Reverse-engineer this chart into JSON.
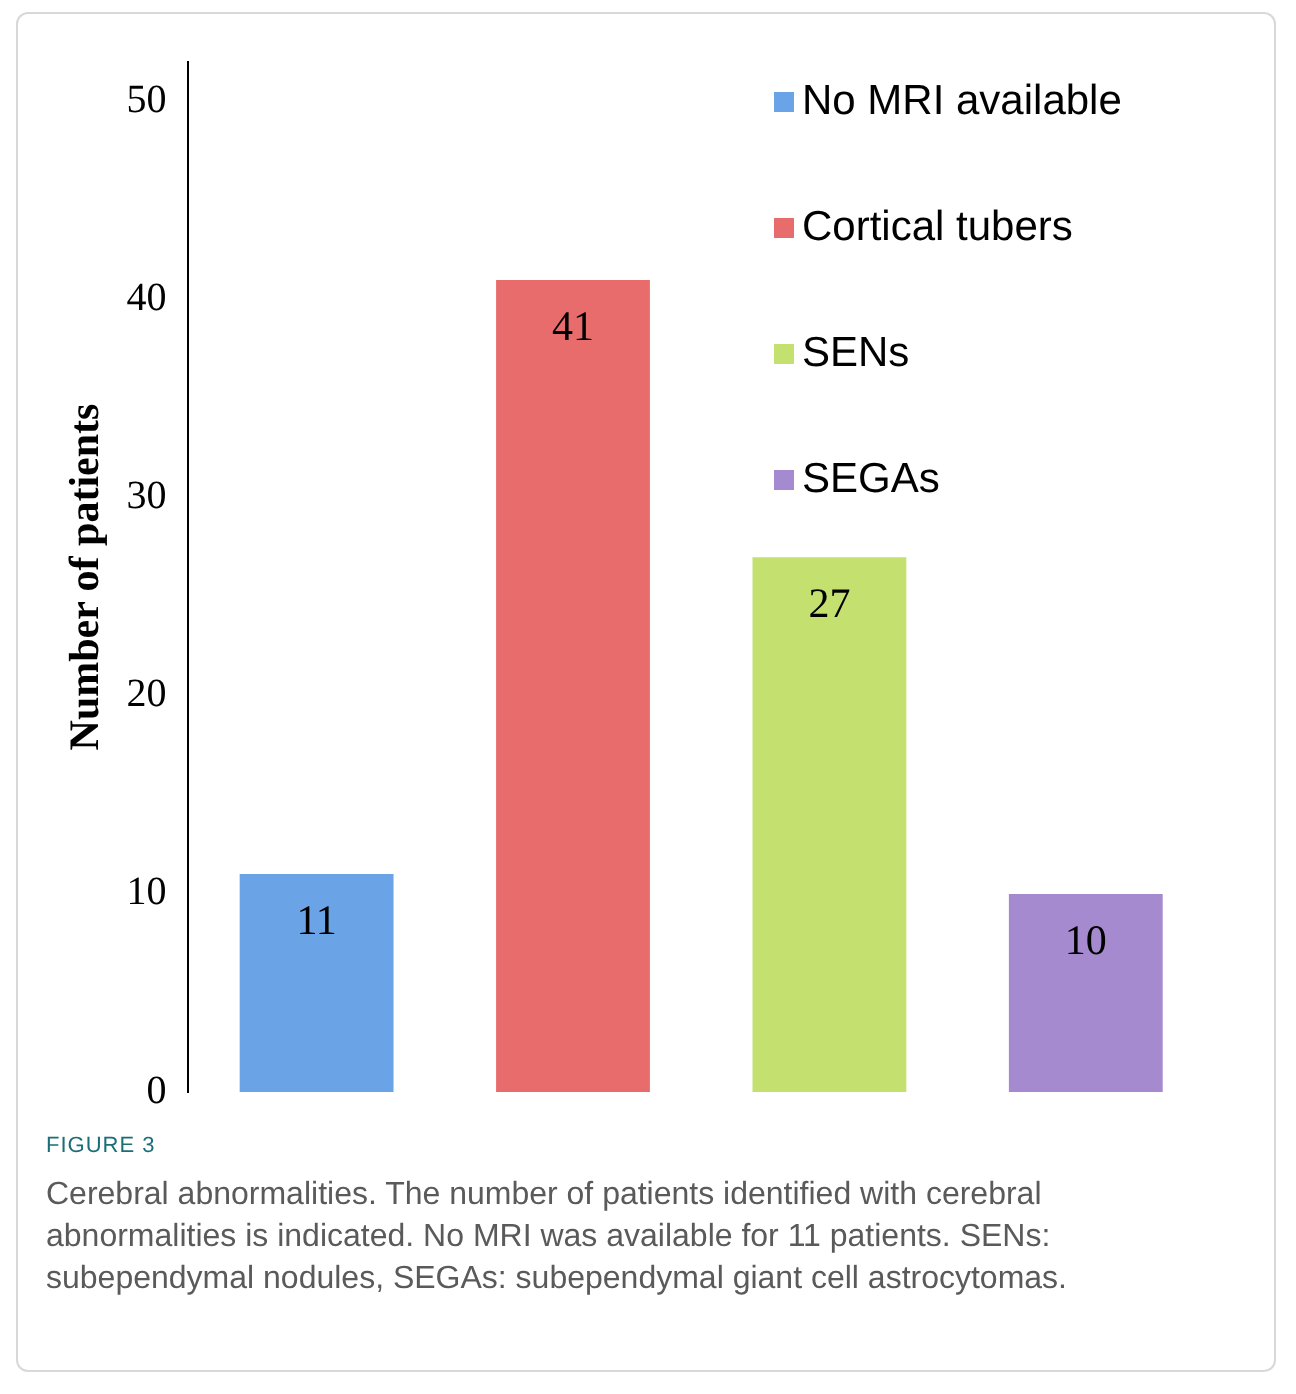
{
  "chart_data": {
    "type": "bar",
    "ylabel": "Number of patients",
    "categories": [
      null,
      null,
      null,
      null
    ],
    "stacked": true,
    "series": [
      {
        "name": "No MRI available",
        "color": "#6aa3e6",
        "values": [
          11,
          null,
          null,
          null
        ]
      },
      {
        "name": "Cortical tubers",
        "color": "#e86c6c",
        "values": [
          null,
          41,
          null,
          null
        ]
      },
      {
        "name": "SENs",
        "color": "#c4e06e",
        "values": [
          null,
          null,
          27,
          null
        ]
      },
      {
        "name": "SEGAs",
        "color": "#a68ad0",
        "values": [
          null,
          null,
          null,
          10
        ]
      }
    ],
    "ylim": [
      0,
      52
    ],
    "yticks": [
      0,
      10,
      20,
      30,
      40,
      50
    ],
    "grid": false,
    "legend": "top right",
    "data_labels": true,
    "tick_labels": "y",
    "annotations": [
      "FIGURE 3",
      "Cerebral abnormalities. The number of patients identified with cerebral abnormalities is indicated. No MRI was available for 11 patients. SENs: subependymal nodules, SEGAs: subependymal giant cell astrocytomas."
    ]
  }
}
